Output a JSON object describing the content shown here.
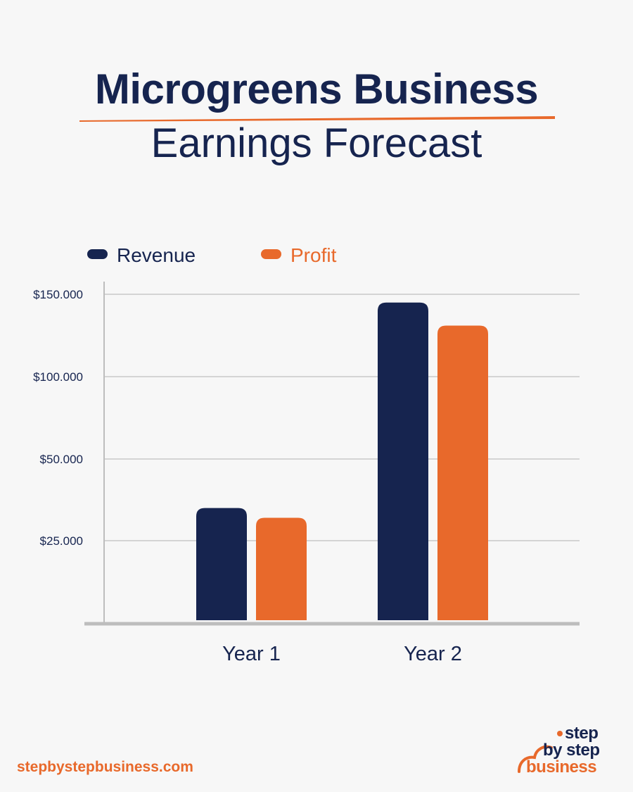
{
  "header": {
    "title_line1": "Microgreens Business",
    "title_line2": "Earnings Forecast"
  },
  "colors": {
    "revenue": "#16244f",
    "profit": "#e8692b",
    "grid": "#d4d4d4",
    "axis": "#bdbdbd",
    "text": "#16244f",
    "background": "#f7f7f7"
  },
  "chart_data": {
    "type": "bar",
    "categories": [
      "Year 1",
      "Year 2"
    ],
    "series": [
      {
        "name": "Revenue",
        "values": [
          35000,
          145000
        ]
      },
      {
        "name": "Profit",
        "values": [
          32000,
          131000
        ]
      }
    ],
    "y_ticks": [
      {
        "value": 25000,
        "label": "$25.000"
      },
      {
        "value": 50000,
        "label": "$50.000"
      },
      {
        "value": 100000,
        "label": "$100.000"
      },
      {
        "value": 150000,
        "label": "$150.000"
      }
    ],
    "ylim": [
      0,
      150000
    ],
    "grid": true,
    "legend_position": "top-left"
  },
  "footer": {
    "url": "stepbystepbusiness.com",
    "logo_line1": "step",
    "logo_line2": "by step",
    "logo_line3": "business"
  }
}
